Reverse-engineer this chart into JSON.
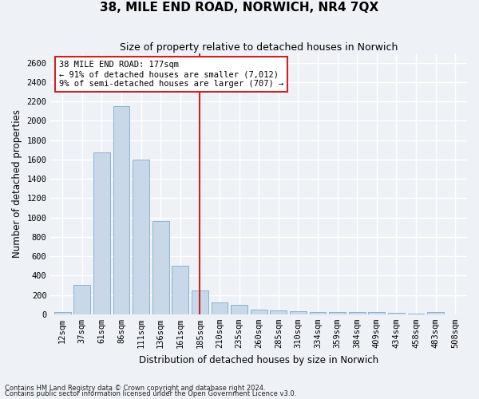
{
  "title": "38, MILE END ROAD, NORWICH, NR4 7QX",
  "subtitle": "Size of property relative to detached houses in Norwich",
  "xlabel": "Distribution of detached houses by size in Norwich",
  "ylabel": "Number of detached properties",
  "bar_color": "#c8d8e8",
  "bar_edgecolor": "#7aaac8",
  "bar_values": [
    25,
    300,
    1675,
    2150,
    1600,
    960,
    500,
    250,
    125,
    100,
    50,
    40,
    35,
    20,
    20,
    20,
    20,
    15,
    5,
    25,
    0
  ],
  "bar_labels": [
    "12sqm",
    "37sqm",
    "61sqm",
    "86sqm",
    "111sqm",
    "136sqm",
    "161sqm",
    "185sqm",
    "210sqm",
    "235sqm",
    "260sqm",
    "285sqm",
    "310sqm",
    "334sqm",
    "359sqm",
    "384sqm",
    "409sqm",
    "434sqm",
    "458sqm",
    "483sqm",
    "508sqm"
  ],
  "ylim": [
    0,
    2700
  ],
  "yticks": [
    0,
    200,
    400,
    600,
    800,
    1000,
    1200,
    1400,
    1600,
    1800,
    2000,
    2200,
    2400,
    2600
  ],
  "vline_x": 7.0,
  "vline_color": "#cc2222",
  "annotation_line1": "38 MILE END ROAD: 177sqm",
  "annotation_line2": "← 91% of detached houses are smaller (7,012)",
  "annotation_line3": "9% of semi-detached houses are larger (707) →",
  "annotation_box_color": "#ffffff",
  "annotation_box_edgecolor": "#cc2222",
  "footer1": "Contains HM Land Registry data © Crown copyright and database right 2024.",
  "footer2": "Contains public sector information licensed under the Open Government Licence v3.0.",
  "bg_color": "#eef2f7",
  "grid_color": "#ffffff",
  "title_fontsize": 11,
  "subtitle_fontsize": 9,
  "axis_label_fontsize": 8.5,
  "tick_fontsize": 7.5,
  "annotation_fontsize": 7.5
}
